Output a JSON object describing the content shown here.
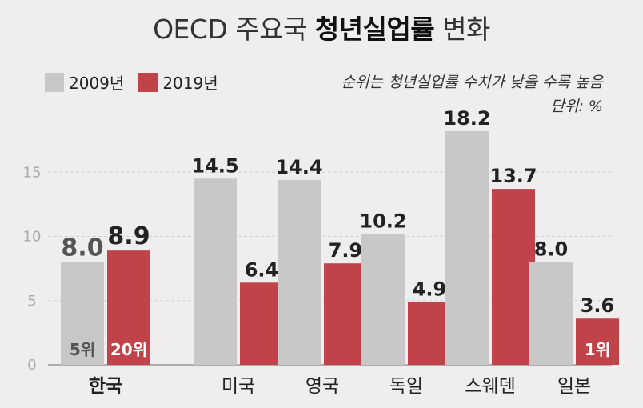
{
  "header": {
    "title_prefix": "OECD 주요국 ",
    "title_strong": "청년실업률",
    "title_suffix": " 변화"
  },
  "legend": [
    {
      "label": "2009년",
      "color": "#c8c8c8"
    },
    {
      "label": "2019년",
      "color": "#c1434a"
    }
  ],
  "note": {
    "line1": "순위는 청년실업률 수치가 낮을 수록 높음",
    "line2": "단위: %"
  },
  "chart_data": {
    "type": "bar",
    "title": "OECD 주요국 청년실업률 변화",
    "categories": [
      "한국",
      "미국",
      "영국",
      "독일",
      "스웨덴",
      "일본"
    ],
    "series": [
      {
        "name": "2009년",
        "color": "#c8c8c8",
        "values": [
          8.0,
          14.5,
          14.4,
          10.2,
          18.2,
          8.0
        ]
      },
      {
        "name": "2019년",
        "color": "#c1434a",
        "values": [
          8.9,
          6.4,
          7.9,
          4.9,
          13.7,
          3.6
        ]
      }
    ],
    "yticks": [
      0,
      5,
      10,
      15
    ],
    "ylim": [
      0,
      20
    ],
    "grid": true,
    "value_labels": [
      [
        "8.0",
        "14.5",
        "14.4",
        "10.2",
        "18.2",
        "8.0"
      ],
      [
        "8.9",
        "6.4",
        "7.9",
        "4.9",
        "13.7",
        "3.6"
      ]
    ],
    "annotations": [
      {
        "category": "한국",
        "series": "2009년",
        "text": "5위"
      },
      {
        "category": "한국",
        "series": "2019년",
        "text": "20위"
      },
      {
        "category": "일본",
        "series": "2019년",
        "text": "1위"
      }
    ]
  }
}
